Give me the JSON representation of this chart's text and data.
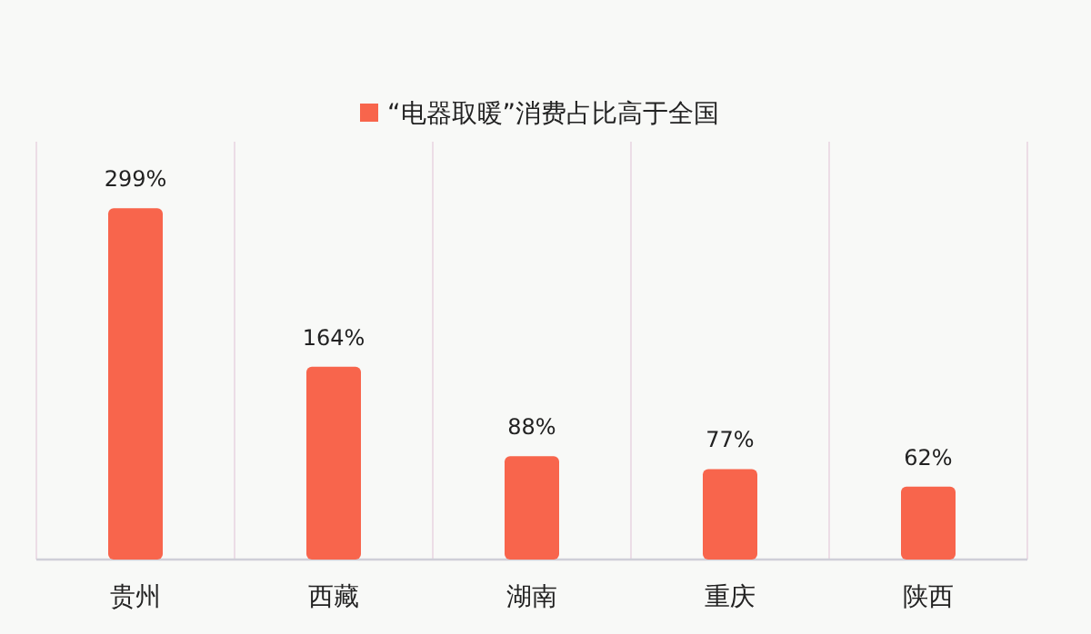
{
  "chart_data": {
    "type": "bar",
    "categories": [
      "贵州",
      "西藏",
      "湖南",
      "重庆",
      "陕西"
    ],
    "series": [
      {
        "name": "“电器取暖”消费占比高于全国",
        "color": "#f8654c",
        "values": [
          299,
          164,
          88,
          77,
          62
        ],
        "value_labels": [
          "299%",
          "164%",
          "88%",
          "77%",
          "62%"
        ]
      }
    ],
    "legend": "top",
    "grid": "x"
  }
}
